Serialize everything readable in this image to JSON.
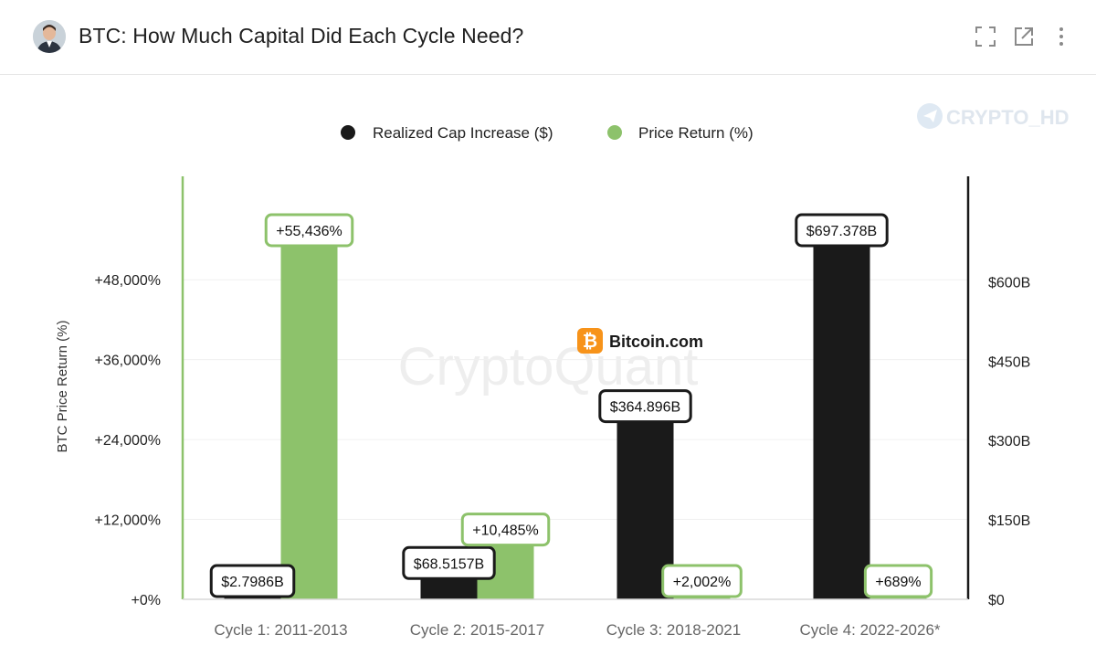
{
  "header": {
    "title": "BTC: How Much Capital Did Each Cycle Need?",
    "icons": [
      "expand-icon",
      "external-link-icon",
      "more-vertical-icon"
    ]
  },
  "watermarks": {
    "brand": "CRYPTO_HD",
    "center": "CryptoQuant",
    "logo": "Bitcoin.com"
  },
  "colors": {
    "realized_cap": "#1a1a1a",
    "price_return": "#8dc26b",
    "price_return_border": "#8dc26b",
    "axis_left": "#8dc26b",
    "axis_right": "#1a1a1a"
  },
  "chart_data": {
    "type": "bar",
    "categories": [
      "Cycle 1: 2011-2013",
      "Cycle 2: 2015-2017",
      "Cycle 3: 2018-2021",
      "Cycle 4: 2022-2026*"
    ],
    "series": [
      {
        "name": "Realized Cap Increase ($)",
        "axis": "right",
        "unit": "billion USD",
        "values": [
          2.7986,
          68.5157,
          364.896,
          697.378
        ],
        "labels": [
          "$2.7986B",
          "$68.5157B",
          "$364.896B",
          "$697.378B"
        ]
      },
      {
        "name": "Price Return (%)",
        "axis": "left",
        "unit": "percent",
        "values": [
          55436,
          10485,
          2002,
          689
        ],
        "labels": [
          "+55,436%",
          "+10,485%",
          "+2,002%",
          "+689%"
        ]
      }
    ],
    "ylabel": "BTC Price Return (%)",
    "ylim_left": [
      0,
      55436
    ],
    "yticks_left": [
      0,
      12000,
      24000,
      36000,
      48000
    ],
    "ytick_labels_left": [
      "+0%",
      "+12,000%",
      "+24,000%",
      "+36,000%",
      "+48,000%"
    ],
    "ylim_right": [
      0,
      697.378
    ],
    "yticks_right": [
      0,
      150,
      300,
      450,
      600
    ],
    "ytick_labels_right": [
      "$0",
      "$150B",
      "$300B",
      "$450B",
      "$600B"
    ],
    "legend_position": "top-center",
    "grid": true
  }
}
